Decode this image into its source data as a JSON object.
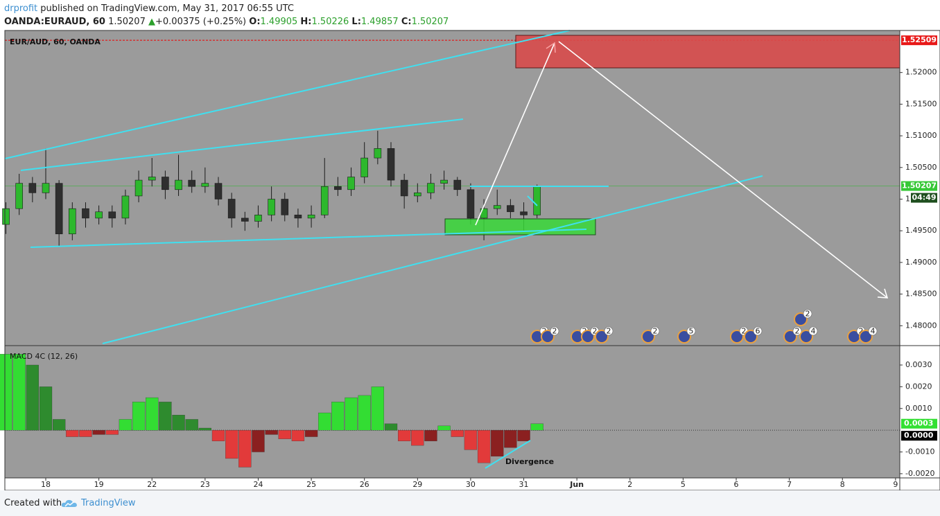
{
  "header": {
    "author": "drprofit",
    "published": "published on TradingView.com, May 31, 2017 06:55 UTC",
    "symbol": "OANDA:EURAUD, 60",
    "price": "1.50207",
    "arrow": "▲",
    "change": "+0.00375 (+0.25%)",
    "o_label": "O:",
    "o": "1.49905",
    "h_label": "H:",
    "h": "1.50226",
    "l_label": "L:",
    "l": "1.49857",
    "c_label": "C:",
    "c": "1.50207"
  },
  "footer": {
    "created": "Created with",
    "brand": "TradingView"
  },
  "chart_data": [
    {
      "type": "candlestick",
      "title": "EUR/AUD, 60, OANDA",
      "x": [
        -0.75,
        -0.5,
        -0.25,
        0,
        0.25,
        0.5,
        0.75,
        1,
        1.25,
        1.5,
        1.75,
        2,
        2.25,
        2.5,
        2.75,
        3,
        3.25,
        3.5,
        3.75,
        4,
        4.25,
        4.5,
        4.75,
        5,
        5.25,
        5.5,
        5.75,
        6,
        6.25,
        6.5,
        6.75,
        7,
        7.25,
        7.5,
        7.75,
        8,
        8.25,
        8.5,
        8.75,
        9,
        9.25
      ],
      "open": [
        1.496,
        1.4985,
        1.5025,
        1.501,
        1.5025,
        1.4945,
        1.4985,
        1.497,
        1.498,
        1.497,
        1.5005,
        1.503,
        1.5035,
        1.5015,
        1.503,
        1.502,
        1.5025,
        1.5,
        1.497,
        1.4965,
        1.4975,
        1.5,
        1.4975,
        1.497,
        1.4975,
        1.502,
        1.5015,
        1.5035,
        1.5065,
        1.508,
        1.503,
        1.5005,
        1.501,
        1.5025,
        1.503,
        1.5015,
        1.497,
        1.4985,
        1.499,
        1.498,
        1.4975
      ],
      "high": [
        1.4995,
        1.504,
        1.5035,
        1.508,
        1.503,
        1.4995,
        1.4995,
        1.499,
        1.499,
        1.5015,
        1.5045,
        1.5065,
        1.5045,
        1.507,
        1.5045,
        1.505,
        1.5035,
        1.501,
        1.498,
        1.499,
        1.502,
        1.501,
        1.4985,
        1.499,
        1.5065,
        1.5035,
        1.505,
        1.509,
        1.5108,
        1.509,
        1.504,
        1.5025,
        1.504,
        1.5045,
        1.5035,
        1.5025,
        1.5,
        1.5015,
        1.5,
        1.4995,
        1.5023
      ],
      "low": [
        1.4945,
        1.4975,
        1.4995,
        1.5,
        1.4925,
        1.4935,
        1.4955,
        1.496,
        1.4955,
        1.496,
        1.4995,
        1.502,
        1.5,
        1.5005,
        1.501,
        1.501,
        1.499,
        1.4955,
        1.495,
        1.4955,
        1.4965,
        1.4965,
        1.4955,
        1.4955,
        1.497,
        1.5005,
        1.5005,
        1.5025,
        1.5055,
        1.502,
        1.4985,
        1.4995,
        1.5,
        1.5015,
        1.5005,
        1.496,
        1.4935,
        1.4975,
        1.497,
        1.495,
        1.497
      ],
      "close": [
        1.4985,
        1.5025,
        1.501,
        1.5025,
        1.4945,
        1.4985,
        1.497,
        1.498,
        1.497,
        1.5005,
        1.503,
        1.5035,
        1.5015,
        1.503,
        1.502,
        1.5025,
        1.5,
        1.497,
        1.4965,
        1.4975,
        1.5,
        1.4975,
        1.497,
        1.4975,
        1.502,
        1.5015,
        1.5035,
        1.5065,
        1.508,
        1.503,
        1.5005,
        1.501,
        1.5025,
        1.503,
        1.5015,
        1.497,
        1.4985,
        1.499,
        1.498,
        1.4975,
        1.5021
      ],
      "up_color": "#2db82d",
      "down_color": "#2f2f2f",
      "xlim": [
        -0.77,
        16.08
      ],
      "xticks": [
        {
          "value": 0,
          "label": "18"
        },
        {
          "value": 1,
          "label": "19"
        },
        {
          "value": 2,
          "label": "22"
        },
        {
          "value": 3,
          "label": "23"
        },
        {
          "value": 4,
          "label": "24"
        },
        {
          "value": 5,
          "label": "25"
        },
        {
          "value": 6,
          "label": "26"
        },
        {
          "value": 7,
          "label": "29"
        },
        {
          "value": 8,
          "label": "30"
        },
        {
          "value": 9,
          "label": "31"
        },
        {
          "value": 10,
          "label": "Jun"
        },
        {
          "value": 11,
          "label": "2"
        },
        {
          "value": 12,
          "label": "5"
        },
        {
          "value": 13,
          "label": "6"
        },
        {
          "value": 14,
          "label": "7"
        },
        {
          "value": 15,
          "label": "8"
        },
        {
          "value": 16,
          "label": "9"
        }
      ],
      "ylim": [
        1.47697,
        1.52664
      ],
      "yticks": [
        {
          "value": 1.48,
          "label": "1.48000"
        },
        {
          "value": 1.485,
          "label": "1.48500"
        },
        {
          "value": 1.49,
          "label": "1.49000"
        },
        {
          "value": 1.495,
          "label": "1.49500"
        },
        {
          "value": 1.5,
          "label": "1.50000"
        },
        {
          "value": 1.505,
          "label": "1.50500"
        },
        {
          "value": 1.51,
          "label": "1.51000"
        },
        {
          "value": 1.515,
          "label": "1.51500"
        },
        {
          "value": 1.52,
          "label": "1.52000"
        }
      ],
      "last_price": 1.50207,
      "countdown": "04:49",
      "alert_level": 1.52509,
      "events": [
        "2",
        "2",
        "2",
        "2",
        "2",
        "2",
        "5",
        "2",
        "6",
        "2",
        "2",
        "4",
        "2",
        "4"
      ]
    },
    {
      "type": "bar",
      "title": "MACD 4C (12, 26)",
      "x": [
        -0.75,
        -0.5,
        -0.25,
        0,
        0.25,
        0.5,
        0.75,
        1,
        1.25,
        1.5,
        1.75,
        2,
        2.25,
        2.5,
        2.75,
        3,
        3.25,
        3.5,
        3.75,
        4,
        4.25,
        4.5,
        4.75,
        5,
        5.25,
        5.5,
        5.75,
        6,
        6.25,
        6.5,
        6.75,
        7,
        7.25,
        7.5,
        7.75,
        8,
        8.25,
        8.5,
        8.75,
        9,
        9.25
      ],
      "values": [
        0.0035,
        0.0035,
        0.003,
        0.002,
        0.0005,
        -0.0003,
        -0.0003,
        -0.0002,
        -0.0002,
        0.0005,
        0.0013,
        0.0015,
        0.0013,
        0.0007,
        0.0005,
        0.0001,
        -0.0005,
        -0.0013,
        -0.0017,
        -0.001,
        -0.0002,
        -0.0004,
        -0.0005,
        -0.0003,
        0.0008,
        0.0013,
        0.0015,
        0.0016,
        0.002,
        0.0003,
        -0.0005,
        -0.0007,
        -0.0005,
        0.0002,
        -0.0003,
        -0.0009,
        -0.0015,
        -0.0012,
        -0.0008,
        -0.0005,
        0.0003
      ],
      "rising_color": "#33dd33",
      "falling_color": "#2e8b2e",
      "negative_color": "#e23a3a",
      "negative_deep_color": "#8b2020",
      "xlim": [
        -0.77,
        16.08
      ],
      "ylim": [
        -0.00213,
        0.00386
      ],
      "yticks": [
        {
          "value": -0.002,
          "label": "-0.0020"
        },
        {
          "value": -0.001,
          "label": "-0.0010"
        },
        {
          "value": 0.001,
          "label": "0.0010"
        },
        {
          "value": 0.002,
          "label": "0.0020"
        },
        {
          "value": 0.003,
          "label": "0.0030"
        }
      ],
      "zero_label": {
        "value": 0,
        "label": "0.0000"
      },
      "annotation": "Divergence"
    }
  ]
}
